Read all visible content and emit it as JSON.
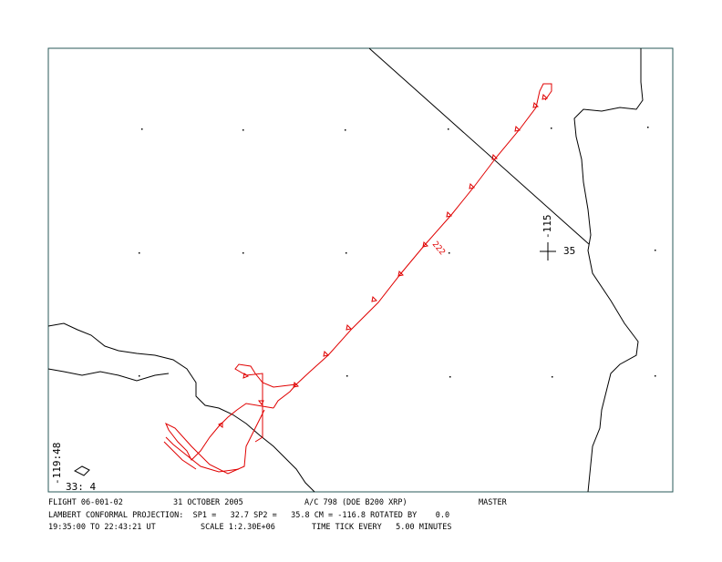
{
  "footer": {
    "flight": "FLIGHT 06-001-02",
    "date": "31 OCTOBER 2005",
    "aircraft": "A/C 798 (DOE B200 XRP)",
    "mode": "MASTER",
    "projection": "LAMBERT CONFORMAL PROJECTION:  SP1 =   32.7 SP2 =   35.8 CM = -116.8 ROTATED BY    0.0",
    "time_range": "19:35:00 TO 22:43:21 UT",
    "scale": "SCALE 1:2.30E+06",
    "time_tick": "TIME TICK EVERY   5.00 MINUTES"
  },
  "map": {
    "lon_label": "-115",
    "lat_label": "35",
    "corner_lon": "-119:48",
    "corner_lat": "33: 4",
    "track_label": "222"
  }
}
